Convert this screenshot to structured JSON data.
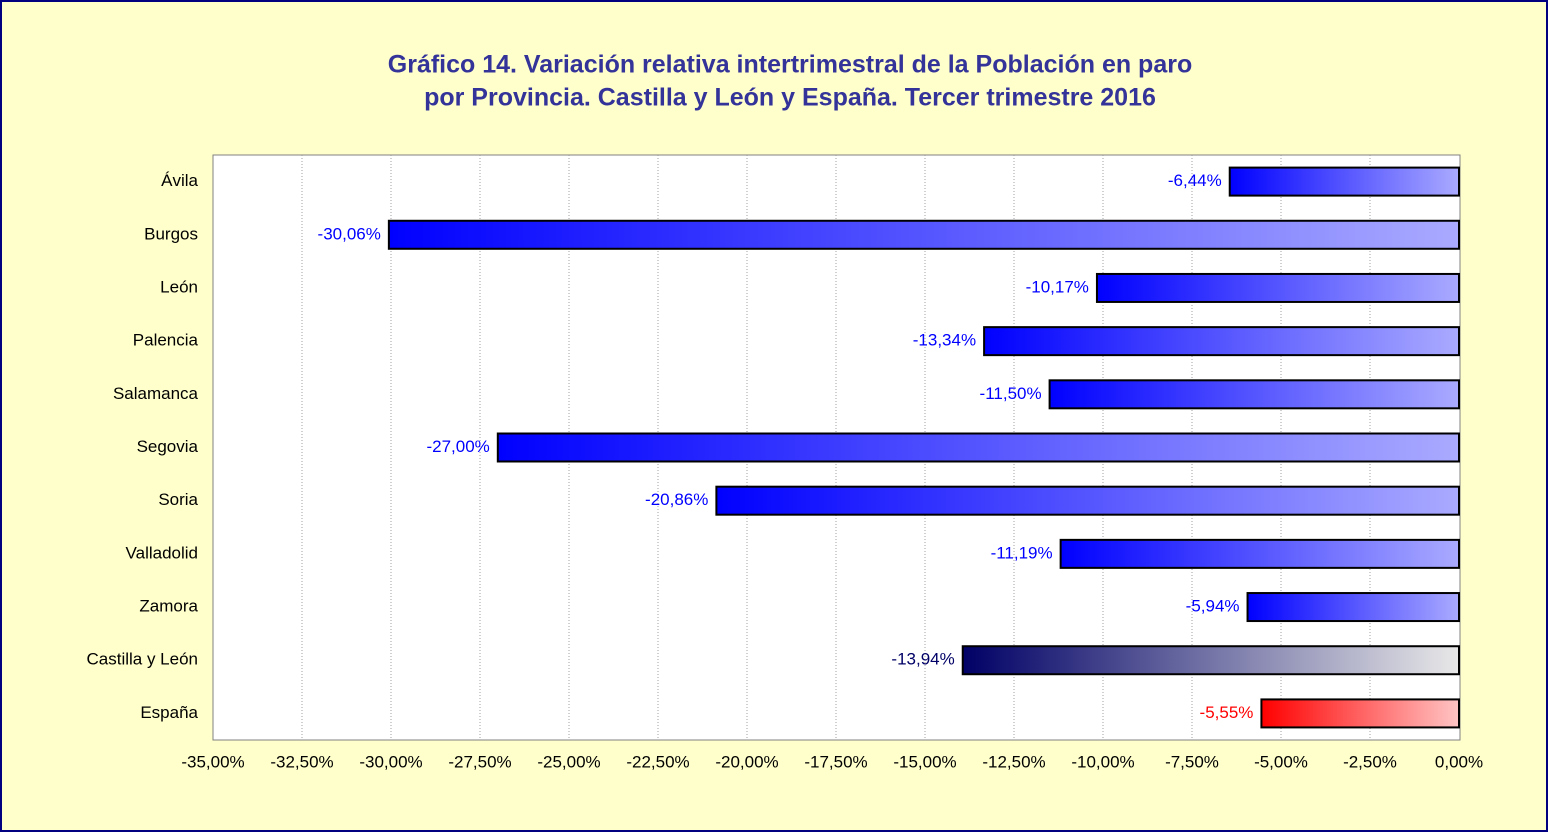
{
  "chart_data": {
    "type": "barh",
    "title": [
      "Gráfico 14. Variación relativa intertrimestral de la Población en paro",
      "por Provincia. Castilla y León y España. Tercer trimestre 2016"
    ],
    "categories": [
      "Ávila",
      "Burgos",
      "León",
      "Palencia",
      "Salamanca",
      "Segovia",
      "Soria",
      "Valladolid",
      "Zamora",
      "Castilla y León",
      "España"
    ],
    "values": [
      -6.44,
      -30.06,
      -10.17,
      -13.34,
      -11.5,
      -27.0,
      -20.86,
      -11.19,
      -5.94,
      -13.94,
      -5.55
    ],
    "value_labels": [
      "-6,44%",
      "-30,06%",
      "-10,17%",
      "-13,34%",
      "-11,50%",
      "-27,00%",
      "-20,86%",
      "-11,19%",
      "-5,94%",
      "-13,94%",
      "-5,55%"
    ],
    "colors": [
      [
        "#0000ff",
        "#aaaaff"
      ],
      [
        "#0000ff",
        "#aaaaff"
      ],
      [
        "#0000ff",
        "#aaaaff"
      ],
      [
        "#0000ff",
        "#aaaaff"
      ],
      [
        "#0000ff",
        "#aaaaff"
      ],
      [
        "#0000ff",
        "#aaaaff"
      ],
      [
        "#0000ff",
        "#aaaaff"
      ],
      [
        "#0000ff",
        "#aaaaff"
      ],
      [
        "#0000ff",
        "#aaaaff"
      ],
      [
        "#000066",
        "#e8e8e8"
      ],
      [
        "#ff0000",
        "#ffc4c4"
      ]
    ],
    "xlim": [
      -35,
      0
    ],
    "xticks": [
      {
        "value": -35,
        "label": "-35,00%"
      },
      {
        "value": -32.5,
        "label": "-32,50%"
      },
      {
        "value": -30,
        "label": "-30,00%"
      },
      {
        "value": -27.5,
        "label": "-27,50%"
      },
      {
        "value": -25,
        "label": "-25,00%"
      },
      {
        "value": -22.5,
        "label": "-22,50%"
      },
      {
        "value": -20,
        "label": "-20,00%"
      },
      {
        "value": -17.5,
        "label": "-17,50%"
      },
      {
        "value": -15,
        "label": "-15,00%"
      },
      {
        "value": -12.5,
        "label": "-12,50%"
      },
      {
        "value": -10,
        "label": "-10,00%"
      },
      {
        "value": -7.5,
        "label": "-7,50%"
      },
      {
        "value": -5,
        "label": "-5,00%"
      },
      {
        "value": -2.5,
        "label": "-2,50%"
      },
      {
        "value": 0,
        "label": "0,00%"
      }
    ],
    "grid": true
  }
}
